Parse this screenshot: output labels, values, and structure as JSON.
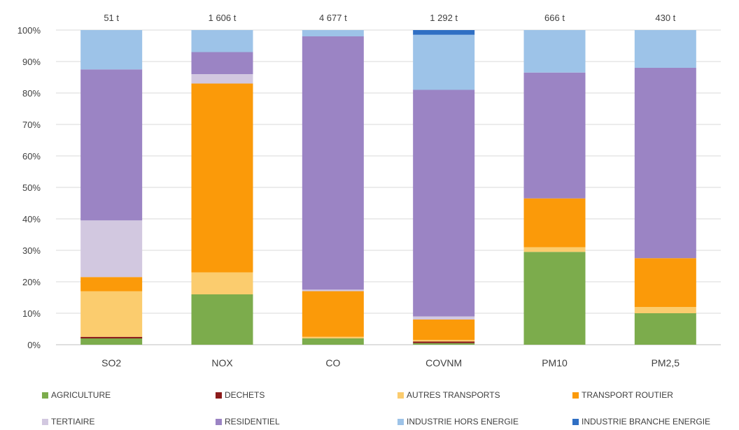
{
  "chart_data": {
    "type": "bar",
    "stacked": "percent",
    "categories": [
      "SO2",
      "NOX",
      "CO",
      "COVNM",
      "PM10",
      "PM2,5"
    ],
    "totals": [
      "51 t",
      "1 606 t",
      "4 677 t",
      "1 292 t",
      "666 t",
      "430 t"
    ],
    "yticks": [
      "0%",
      "10%",
      "20%",
      "30%",
      "40%",
      "50%",
      "60%",
      "70%",
      "80%",
      "90%",
      "100%"
    ],
    "ylim": [
      0,
      100
    ],
    "grid": true,
    "legend_position": "bottom",
    "series": [
      {
        "name": "AGRICULTURE",
        "color": "#7cac4c",
        "values": [
          2,
          16,
          2,
          0.5,
          29.5,
          10
        ]
      },
      {
        "name": "DECHETS",
        "color": "#8b1a1a",
        "values": [
          0.5,
          0,
          0,
          0.5,
          0,
          0
        ]
      },
      {
        "name": "AUTRES TRANSPORTS",
        "color": "#fbcc6e",
        "values": [
          14.5,
          7,
          0.5,
          0.5,
          1.5,
          2
        ]
      },
      {
        "name": "TRANSPORT ROUTIER",
        "color": "#fb9a09",
        "values": [
          4.5,
          60,
          14.5,
          6.5,
          15.5,
          15.5
        ]
      },
      {
        "name": "TERTIAIRE",
        "color": "#d2c8e0",
        "values": [
          18,
          3,
          0.5,
          1,
          0,
          0
        ]
      },
      {
        "name": "RESIDENTIEL",
        "color": "#9b84c4",
        "values": [
          48,
          7,
          80.5,
          72,
          40,
          60.5
        ]
      },
      {
        "name": "INDUSTRIE HORS ENERGIE",
        "color": "#9dc3e8",
        "values": [
          12.5,
          7,
          2,
          17.5,
          13.5,
          12
        ]
      },
      {
        "name": "INDUSTRIE BRANCHE ENERGIE",
        "color": "#2f6fc4",
        "values": [
          0,
          0,
          0,
          1.5,
          0,
          0
        ]
      }
    ]
  }
}
